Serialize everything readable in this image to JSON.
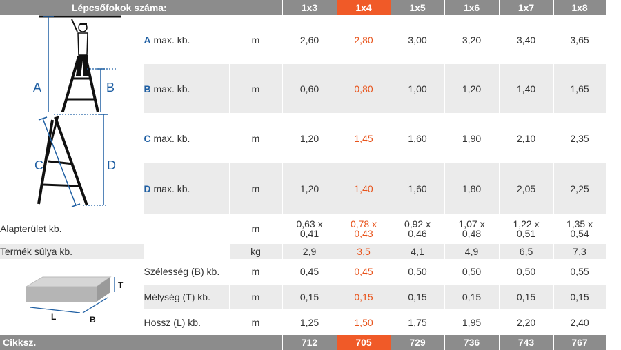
{
  "header": {
    "title": "Lépcsőfokok száma:",
    "columns": [
      "1x3",
      "1x4",
      "1x5",
      "1x6",
      "1x7",
      "1x8"
    ],
    "highlight_index": 1
  },
  "rows": [
    {
      "letter": "A",
      "label": " max. kb.",
      "unit": "m",
      "values": [
        "2,60",
        "2,80",
        "3,00",
        "3,20",
        "3,40",
        "3,65"
      ]
    },
    {
      "letter": "B",
      "label": " max. kb.",
      "unit": "m",
      "values": [
        "0,60",
        "0,80",
        "1,00",
        "1,20",
        "1,40",
        "1,65"
      ]
    },
    {
      "letter": "C",
      "label": " max. kb.",
      "unit": "m",
      "values": [
        "1,20",
        "1,45",
        "1,60",
        "1,90",
        "2,10",
        "2,35"
      ]
    },
    {
      "letter": "D",
      "label": " max. kb.",
      "unit": "m",
      "values": [
        "1,20",
        "1,40",
        "1,60",
        "1,80",
        "2,05",
        "2,25"
      ]
    }
  ],
  "footprint": {
    "label": "Alapterület kb.",
    "unit": "m",
    "values": [
      [
        "0,63 x",
        "0,41"
      ],
      [
        "0,78 x",
        "0,43"
      ],
      [
        "0,92 x",
        "0,46"
      ],
      [
        "1,07 x",
        "0,48"
      ],
      [
        "1,22 x",
        "0,51"
      ],
      [
        "1,35 x",
        "0,54"
      ]
    ]
  },
  "weight": {
    "label": "Termék súlya kb.",
    "unit": "kg",
    "values": [
      "2,9",
      "3,5",
      "4,1",
      "4,9",
      "6,5",
      "7,3"
    ]
  },
  "package": [
    {
      "label": "Szélesség (B) kb.",
      "unit": "m",
      "values": [
        "0,45",
        "0,45",
        "0,50",
        "0,50",
        "0,50",
        "0,55"
      ]
    },
    {
      "label": "Mélység (T) kb.",
      "unit": "m",
      "values": [
        "0,15",
        "0,15",
        "0,15",
        "0,15",
        "0,15",
        "0,15"
      ]
    },
    {
      "label": "Hossz (L) kb.",
      "unit": "m",
      "values": [
        "1,25",
        "1,50",
        "1,75",
        "1,95",
        "2,20",
        "2,40"
      ]
    }
  ],
  "footer": {
    "title": "Cikksz.",
    "codes": [
      "712",
      "705",
      "729",
      "736",
      "743",
      "767"
    ]
  },
  "diagram_labels": {
    "a": "A",
    "b": "B",
    "c": "C",
    "d": "D",
    "box_t": "T",
    "box_l": "L",
    "box_b": "B"
  },
  "colors": {
    "header_bg": "#8c8c8c",
    "highlight": "#f05a28",
    "stripe": "#ebebeb",
    "letter_blue": "#1f5fa3"
  }
}
